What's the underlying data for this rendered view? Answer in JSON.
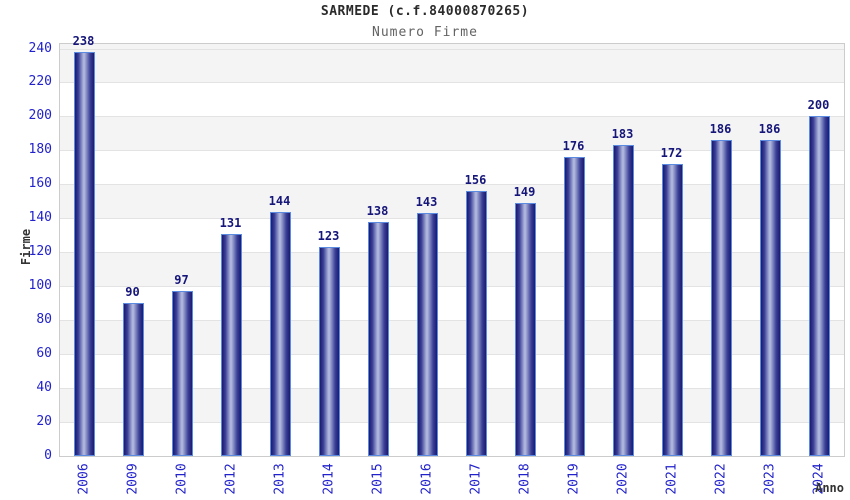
{
  "header": {
    "title": "SARMEDE (c.f.84000870265)",
    "subtitle": "Numero Firme"
  },
  "chart_data": {
    "type": "bar",
    "title": "SARMEDE (c.f.84000870265)",
    "subtitle": "Numero Firme",
    "xlabel": "Anno",
    "ylabel": "Firme",
    "categories": [
      "2006",
      "2009",
      "2010",
      "2012",
      "2013",
      "2014",
      "2015",
      "2016",
      "2017",
      "2018",
      "2019",
      "2020",
      "2021",
      "2022",
      "2023",
      "2024"
    ],
    "values": [
      238,
      90,
      97,
      131,
      144,
      123,
      138,
      143,
      156,
      149,
      176,
      183,
      172,
      186,
      186,
      200
    ],
    "ylim": [
      0,
      240
    ],
    "ytick_step": 20,
    "grid": "horizontal alternating bands, gray band just below each even 40-step from 240",
    "legend": "none",
    "colors": {
      "bar_edge": "#1a1a70",
      "bar_mid": "#3a3f96",
      "bar_highlight": "#aeb6dd",
      "bar_border": "#5a8be0",
      "axis_tick_text": "#2222cc",
      "value_label_text": "#15157a",
      "title_text": "#2b2b2b",
      "subtitle_text": "#636363",
      "band_gray": "#f4f4f4",
      "gridline": "#e3e3e3",
      "plot_border": "#cccccc"
    }
  }
}
